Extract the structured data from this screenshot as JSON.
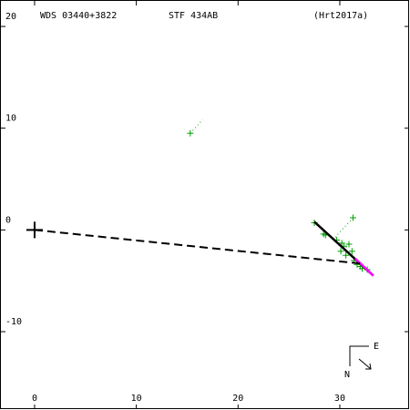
{
  "chart_data": {
    "type": "scatter",
    "title": "WDS 03440+3822",
    "subtitle": "STF 434AB",
    "reference": "(Hrt2017a)",
    "xlim": [
      -3.4,
      36.9
    ],
    "ylim": [
      -17.7,
      22.6
    ],
    "xticks": [
      0,
      10,
      20,
      30
    ],
    "yticks": [
      -10,
      0,
      10,
      20
    ],
    "series": [
      {
        "color": "#00a000",
        "marker": "plus",
        "x": [
          15.3,
          31.3,
          27.5,
          28.4,
          28.6,
          29.7,
          30.2,
          30.4,
          30.9,
          31.2,
          30.1,
          30.6,
          31.4,
          32.0,
          32.2,
          32.7,
          31.7
        ],
        "values": [
          9.5,
          1.2,
          0.7,
          -0.4,
          -0.5,
          -1.0,
          -1.3,
          -1.6,
          -1.4,
          -2.1,
          -2.1,
          -2.5,
          -3.0,
          -3.6,
          -3.8,
          -3.9,
          -3.4
        ]
      },
      {
        "color": "#000000",
        "marker": "line",
        "x": [
          27.5,
          33.3
        ],
        "values": [
          0.8,
          -4.5
        ]
      },
      {
        "color": "#ff00ff",
        "marker": "line",
        "x": [
          31.5,
          33.3
        ],
        "values": [
          -2.8,
          -4.5
        ]
      },
      {
        "color": "#000000",
        "marker": "dashed",
        "x": [
          0,
          32
        ],
        "values": [
          0,
          -3.3
        ]
      },
      {
        "color": "#000000",
        "marker": "big-plus",
        "x": [
          0
        ],
        "values": [
          0
        ]
      }
    ],
    "compass": {
      "east": "E",
      "north": "N"
    }
  }
}
